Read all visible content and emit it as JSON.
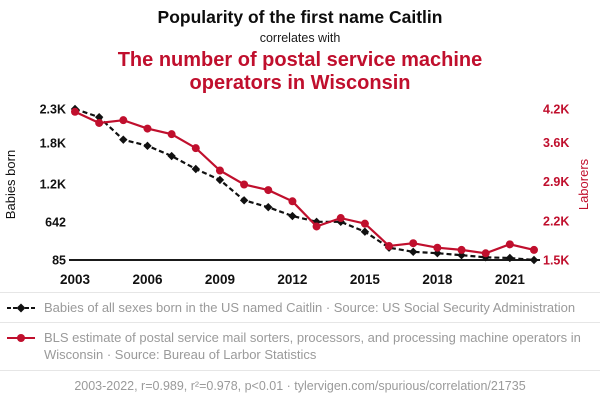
{
  "theme": {
    "accent_red": "#c00f2d",
    "line_black": "#111111",
    "muted_text": "#9a9a9a",
    "rule_gray": "#e6e6e6"
  },
  "header": {
    "title": "Popularity of the first name Caitlin",
    "correlates_with": "correlates with",
    "subtitle": "The number of postal service machine operators in Wisconsin"
  },
  "legend": {
    "series1": "Babies of all sexes born in the US named Caitlin · Source: US Social Security Administration",
    "series2": "BLS estimate of postal service mail sorters, processors, and processing machine operators in Wisconsin · Source: Bureau of Larbor Statistics"
  },
  "footer": {
    "text": "2003-2022, r=0.989, r²=0.978, p<0.01 · tylervigen.com/spurious/correlation/21735"
  },
  "chart_data": {
    "type": "line",
    "x": [
      2003,
      2004,
      2005,
      2006,
      2007,
      2008,
      2009,
      2010,
      2011,
      2012,
      2013,
      2014,
      2015,
      2016,
      2017,
      2018,
      2019,
      2020,
      2021,
      2022
    ],
    "x_ticks": [
      2003,
      2006,
      2009,
      2012,
      2015,
      2018,
      2021
    ],
    "left_axis": {
      "label": "Babies born",
      "range": [
        85,
        2300
      ],
      "ticks": [
        2300,
        1800,
        1200,
        642,
        85
      ],
      "tick_labels": [
        "2.3K",
        "1.8K",
        "1.2K",
        "642",
        "85"
      ]
    },
    "right_axis": {
      "label": "Laborers",
      "range": [
        1500,
        4200
      ],
      "ticks": [
        4200,
        3600,
        2900,
        2200,
        1500
      ],
      "tick_labels": [
        "4.2K",
        "3.6K",
        "2.9K",
        "2.2K",
        "1.5K"
      ]
    },
    "series": [
      {
        "name": "Babies of all sexes born in the US named Caitlin",
        "axis": "left",
        "color": "#111111",
        "dash": true,
        "marker": "diamond",
        "values": [
          2300,
          2180,
          1850,
          1760,
          1610,
          1420,
          1260,
          960,
          860,
          730,
          645,
          645,
          500,
          265,
          205,
          185,
          155,
          125,
          115,
          85
        ]
      },
      {
        "name": "BLS estimate of postal service mail sorters, processors, and processing machine operators in Wisconsin",
        "axis": "right",
        "color": "#c00f2d",
        "dash": false,
        "marker": "circle",
        "values": [
          4150,
          3950,
          4000,
          3850,
          3750,
          3500,
          3100,
          2850,
          2750,
          2550,
          2100,
          2250,
          2150,
          1750,
          1800,
          1720,
          1680,
          1620,
          1780,
          1680
        ]
      }
    ],
    "grid": false,
    "legend_position": "bottom"
  }
}
